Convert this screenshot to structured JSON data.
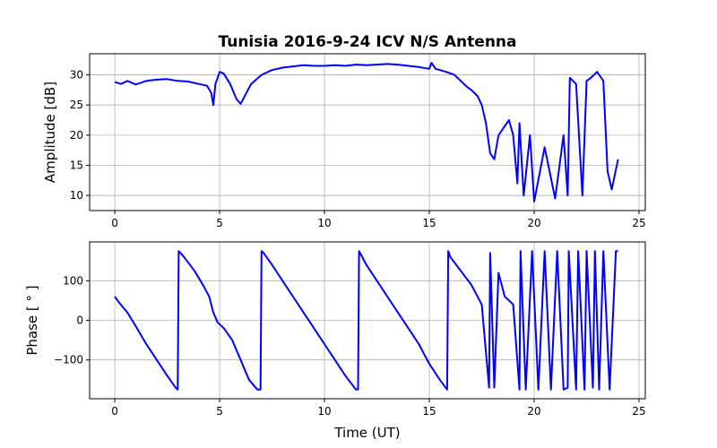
{
  "chart_data": [
    {
      "type": "line",
      "title": "Tunisia 2016-9-24 ICV   N/S Antenna",
      "xlabel": "",
      "ylabel": "Amplitude [dB]",
      "xlim": [
        -1.2,
        25.3
      ],
      "ylim": [
        7.5,
        33.5
      ],
      "xticks": [
        0,
        5,
        10,
        15,
        20,
        25
      ],
      "yticks": [
        10,
        15,
        20,
        25,
        30
      ],
      "xtick_labels": [
        "0",
        "5",
        "10",
        "15",
        "20",
        "25"
      ],
      "ytick_labels": [
        "10",
        "15",
        "20",
        "25",
        "30"
      ],
      "grid": true,
      "color": "#0000ff",
      "series": [
        {
          "x": [
            0,
            0.3,
            0.6,
            1.0,
            1.5,
            2.0,
            2.5,
            3.0,
            3.5,
            4.0,
            4.4,
            4.6,
            4.7,
            4.8,
            5.0,
            5.2,
            5.5,
            5.8,
            6.0,
            6.2,
            6.5,
            7.0,
            7.5,
            8.0,
            8.5,
            9.0,
            9.5,
            10.0,
            10.5,
            11.0,
            11.5,
            12.0,
            12.5,
            13.0,
            13.5,
            14.0,
            14.5,
            15.0,
            15.1,
            15.3,
            15.8,
            16.2,
            16.5,
            16.8,
            17.0,
            17.3,
            17.5,
            17.7,
            17.9,
            18.1,
            18.3,
            18.5,
            18.8,
            19.0,
            19.2,
            19.3,
            19.5,
            19.8,
            20.0,
            20.5,
            21.0,
            21.4,
            21.6,
            21.7,
            22.0,
            22.3,
            22.5,
            22.7,
            23.0,
            23.3,
            23.5,
            23.7,
            24.0
          ],
          "y": [
            28.8,
            28.5,
            29.0,
            28.4,
            29.0,
            29.2,
            29.3,
            29.0,
            28.9,
            28.5,
            28.2,
            27.0,
            25.0,
            28.5,
            30.5,
            30.2,
            28.5,
            26.0,
            25.2,
            26.5,
            28.5,
            30.0,
            30.8,
            31.2,
            31.4,
            31.6,
            31.5,
            31.5,
            31.6,
            31.5,
            31.7,
            31.6,
            31.7,
            31.8,
            31.7,
            31.5,
            31.3,
            31.0,
            32.0,
            31.0,
            30.5,
            30.0,
            29.0,
            28.0,
            27.5,
            26.5,
            25.0,
            22.0,
            17.0,
            16.0,
            20.0,
            21.0,
            22.5,
            20.0,
            12.0,
            22.0,
            10.0,
            20.0,
            9.0,
            18.0,
            9.5,
            20.0,
            10.0,
            29.5,
            28.5,
            10.0,
            29.0,
            29.5,
            30.5,
            29.0,
            14.0,
            11.0,
            16.0
          ]
        }
      ]
    },
    {
      "type": "line",
      "title": "",
      "xlabel": "Time (UT)",
      "ylabel": "Phase [ ° ]",
      "xlim": [
        -1.2,
        25.3
      ],
      "ylim": [
        -198,
        198
      ],
      "xticks": [
        0,
        5,
        10,
        15,
        20,
        25
      ],
      "yticks": [
        -100,
        0,
        100
      ],
      "xtick_labels": [
        "0",
        "5",
        "10",
        "15",
        "20",
        "25"
      ],
      "ytick_labels": [
        "−100",
        "0",
        "100"
      ],
      "grid": true,
      "color": "#0000ff",
      "series": [
        {
          "x": [
            0,
            0.2,
            0.6,
            1.0,
            1.5,
            2.0,
            2.5,
            2.9,
            3.0,
            3.05,
            3.3,
            3.8,
            4.2,
            4.5,
            4.7,
            4.9,
            5.2,
            5.6,
            6.0,
            6.4,
            6.8,
            6.95,
            7.0,
            7.1,
            7.5,
            8.0,
            8.5,
            9.0,
            9.5,
            10.0,
            10.5,
            11.0,
            11.5,
            11.6,
            11.65,
            11.7,
            12.0,
            12.5,
            13.0,
            13.5,
            14.0,
            14.5,
            15.0,
            15.5,
            15.85,
            15.9,
            16.0,
            16.5,
            17.0,
            17.5,
            17.85,
            17.9,
            18.1,
            18.3,
            18.6,
            19.0,
            19.3,
            19.35,
            19.6,
            19.9,
            20.2,
            20.5,
            20.8,
            21.1,
            21.4,
            21.6,
            21.65,
            22.0,
            22.1,
            22.4,
            22.5,
            22.8,
            22.9,
            23.1,
            23.3,
            23.6,
            23.9,
            24.0
          ],
          "y": [
            60,
            45,
            20,
            -15,
            -60,
            -100,
            -140,
            -170,
            -175,
            175,
            160,
            125,
            90,
            60,
            20,
            -5,
            -20,
            -50,
            -100,
            -150,
            -175,
            -175,
            175,
            170,
            140,
            100,
            60,
            20,
            -20,
            -60,
            -100,
            -140,
            -175,
            -175,
            175,
            170,
            140,
            100,
            60,
            20,
            -20,
            -60,
            -110,
            -150,
            -175,
            175,
            160,
            125,
            90,
            40,
            -170,
            170,
            -170,
            120,
            60,
            40,
            -175,
            175,
            -175,
            175,
            -175,
            175,
            -175,
            175,
            -175,
            -170,
            175,
            -175,
            175,
            -175,
            175,
            -170,
            175,
            -175,
            175,
            -175,
            175,
            175
          ]
        }
      ]
    }
  ]
}
